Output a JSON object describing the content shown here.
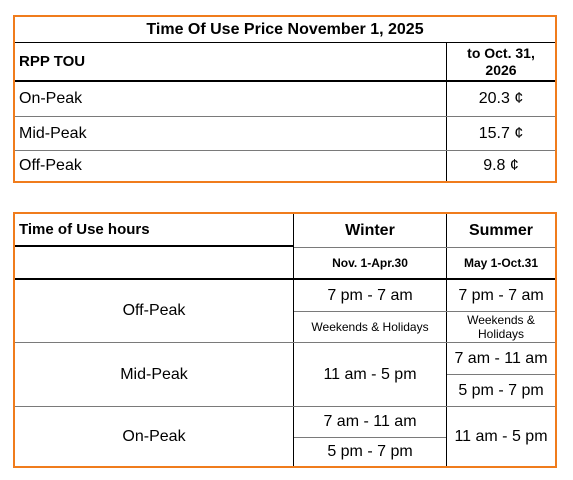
{
  "price_table": {
    "title": "Time Of Use Price November 1, 2025",
    "header_label": "RPP TOU",
    "header_period": "to Oct. 31, 2026",
    "rows": [
      {
        "label": "On-Peak",
        "price": "20.3 ¢"
      },
      {
        "label": "Mid-Peak",
        "price": "15.7 ¢"
      },
      {
        "label": "Off-Peak",
        "price": "9.8 ¢"
      }
    ]
  },
  "hours_table": {
    "header_label": "Time of Use hours",
    "winter_label": "Winter",
    "summer_label": "Summer",
    "winter_range": "Nov. 1-Apr.30",
    "summer_range": "May 1-Oct.31",
    "off_peak": {
      "label": "Off-Peak",
      "winter_1": "7 pm - 7 am",
      "winter_2": "Weekends & Holidays",
      "summer_1": "7 pm - 7 am",
      "summer_2": "Weekends & Holidays"
    },
    "mid_peak": {
      "label": "Mid-Peak",
      "winter": "11 am - 5 pm",
      "summer_1": "7 am - 11 am",
      "summer_2": "5 pm - 7 pm"
    },
    "on_peak": {
      "label": "On-Peak",
      "winter_1": "7 am - 11 am",
      "winter_2": "5 pm - 7 pm",
      "summer": "11 am - 5 pm"
    }
  },
  "colors": {
    "border": "#f07c1c",
    "rule": "#000000",
    "grid": "#7a7a7a"
  }
}
